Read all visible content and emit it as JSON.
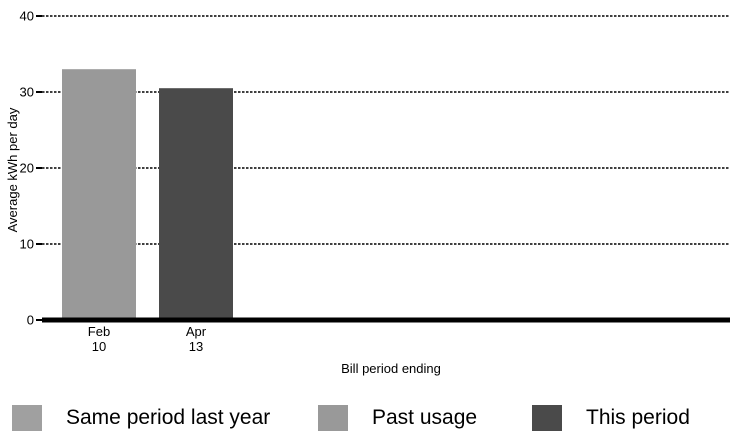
{
  "chart_data": {
    "type": "bar",
    "ylabel": "Average kWh per day",
    "xlabel": "Bill period ending",
    "ylim": [
      0,
      40
    ],
    "yticks": [
      0,
      10,
      20,
      30,
      40
    ],
    "grid": true,
    "categories": [
      {
        "line1": "Feb",
        "line2": "10"
      },
      {
        "line1": "Apr",
        "line2": "13"
      }
    ],
    "bars": [
      {
        "category_index": 0,
        "value": 33.0,
        "series": "past_usage"
      },
      {
        "category_index": 1,
        "value": 30.5,
        "series": "this_period"
      }
    ],
    "legend_position": "bottom",
    "series": [
      {
        "key": "same_period_last_year",
        "name": "Same period last year",
        "color": "#a0a0a0"
      },
      {
        "key": "past_usage",
        "name": "Past usage",
        "color": "#999999"
      },
      {
        "key": "this_period",
        "name": "This period",
        "color": "#4a4a4a"
      }
    ]
  }
}
